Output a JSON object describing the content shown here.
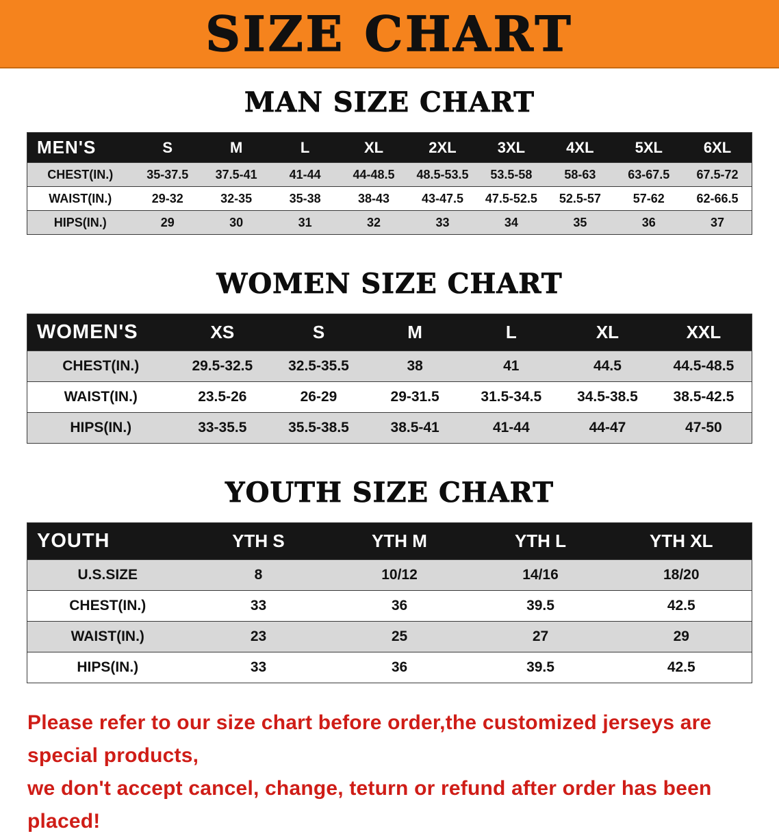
{
  "banner": {
    "title": "SIZE CHART"
  },
  "colors": {
    "banner_bg": "#F5831D",
    "banner_text": "#101010",
    "header_row_bg": "#161616",
    "header_row_text": "#ffffff",
    "row_shade": "#d8d8d8",
    "row_plain": "#ffffff",
    "border": "#3a3a3a",
    "disclaimer_text": "#cf1d17"
  },
  "sections": [
    {
      "heading": "MAN SIZE CHART",
      "table": {
        "label": "MEN'S",
        "columns": [
          "S",
          "M",
          "L",
          "XL",
          "2XL",
          "3XL",
          "4XL",
          "5XL",
          "6XL"
        ],
        "rows": [
          {
            "label": "CHEST(IN.)",
            "values": [
              "35-37.5",
              "37.5-41",
              "41-44",
              "44-48.5",
              "48.5-53.5",
              "53.5-58",
              "58-63",
              "63-67.5",
              "67.5-72"
            ]
          },
          {
            "label": "WAIST(IN.)",
            "values": [
              "29-32",
              "32-35",
              "35-38",
              "38-43",
              "43-47.5",
              "47.5-52.5",
              "52.5-57",
              "57-62",
              "62-66.5"
            ]
          },
          {
            "label": "HIPS(IN.)",
            "values": [
              "29",
              "30",
              "31",
              "32",
              "33",
              "34",
              "35",
              "36",
              "37"
            ]
          }
        ]
      }
    },
    {
      "heading": "WOMEN SIZE CHART",
      "table": {
        "label": "WOMEN'S",
        "columns": [
          "XS",
          "S",
          "M",
          "L",
          "XL",
          "XXL"
        ],
        "rows": [
          {
            "label": "CHEST(IN.)",
            "values": [
              "29.5-32.5",
              "32.5-35.5",
              "38",
              "41",
              "44.5",
              "44.5-48.5"
            ]
          },
          {
            "label": "WAIST(IN.)",
            "values": [
              "23.5-26",
              "26-29",
              "29-31.5",
              "31.5-34.5",
              "34.5-38.5",
              "38.5-42.5"
            ]
          },
          {
            "label": "HIPS(IN.)",
            "values": [
              "33-35.5",
              "35.5-38.5",
              "38.5-41",
              "41-44",
              "44-47",
              "47-50"
            ]
          }
        ]
      }
    },
    {
      "heading": "YOUTH SIZE CHART",
      "table": {
        "label": "YOUTH",
        "columns": [
          "YTH S",
          "YTH M",
          "YTH L",
          "YTH XL"
        ],
        "rows": [
          {
            "label": "U.S.SIZE",
            "values": [
              "8",
              "10/12",
              "14/16",
              "18/20"
            ]
          },
          {
            "label": "CHEST(IN.)",
            "values": [
              "33",
              "36",
              "39.5",
              "42.5"
            ]
          },
          {
            "label": "WAIST(IN.)",
            "values": [
              "23",
              "25",
              "27",
              "29"
            ]
          },
          {
            "label": "HIPS(IN.)",
            "values": [
              "33",
              "36",
              "39.5",
              "42.5"
            ]
          }
        ]
      }
    }
  ],
  "disclaimer": {
    "line1": "Please refer to our size chart before order,the customized jerseys are special products,",
    "line2": "we don't accept cancel, change, teturn or refund after order has been placed!"
  }
}
